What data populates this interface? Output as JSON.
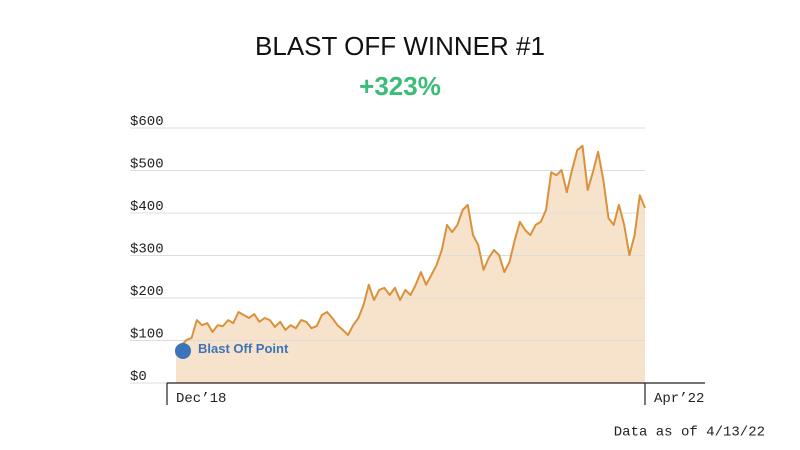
{
  "chart_data": {
    "type": "area",
    "title": "BLAST OFF WINNER #1",
    "subtitle": "+323%",
    "annotation": "Blast Off Point",
    "footnote": "Data as of 4/13/22",
    "color": "#d9923b",
    "fill_color": "#f7e3cb",
    "marker_color": "#3b74b9",
    "categories": [
      "Dec’18",
      null,
      null,
      null,
      null,
      null,
      null,
      null,
      null,
      null,
      null,
      null,
      null,
      null,
      null,
      null,
      null,
      null,
      null,
      null,
      null,
      null,
      null,
      null,
      null,
      null,
      null,
      null,
      null,
      null,
      null,
      null,
      null,
      null,
      null,
      null,
      null,
      null,
      null,
      null,
      null,
      null,
      null,
      null,
      null,
      null,
      null,
      null,
      null,
      null,
      null,
      null,
      null,
      null,
      null,
      null,
      null,
      null,
      null,
      null,
      null,
      null,
      null,
      null,
      null,
      null,
      null,
      null,
      null,
      null,
      null,
      null,
      null,
      null,
      null,
      null,
      null,
      null,
      null,
      null,
      null,
      null,
      null,
      null,
      null,
      null,
      null,
      null,
      null,
      null,
      "Apr’22"
    ],
    "values": [
      66,
      89,
      101,
      106,
      148,
      136,
      141,
      120,
      136,
      134,
      148,
      141,
      167,
      160,
      153,
      162,
      144,
      153,
      148,
      132,
      144,
      125,
      136,
      129,
      148,
      144,
      129,
      134,
      160,
      167,
      153,
      136,
      125,
      113,
      136,
      153,
      184,
      231,
      195,
      219,
      224,
      207,
      224,
      195,
      219,
      207,
      231,
      261,
      231,
      254,
      278,
      313,
      372,
      355,
      372,
      407,
      419,
      348,
      325,
      266,
      294,
      313,
      301,
      261,
      285,
      336,
      379,
      360,
      348,
      372,
      379,
      407,
      496,
      489,
      501,
      449,
      501,
      548,
      558,
      454,
      496,
      544,
      478,
      388,
      372,
      419,
      372,
      301,
      348,
      442,
      412
    ],
    "ylim": [
      0,
      600
    ],
    "yticks": [
      {
        "value": 0,
        "label": "$0"
      },
      {
        "value": 100,
        "label": "$100"
      },
      {
        "value": 200,
        "label": "$200"
      },
      {
        "value": 300,
        "label": "$300"
      },
      {
        "value": 400,
        "label": "$400"
      },
      {
        "value": 500,
        "label": "$500"
      },
      {
        "value": 600,
        "label": "$600"
      }
    ],
    "grid": true
  }
}
